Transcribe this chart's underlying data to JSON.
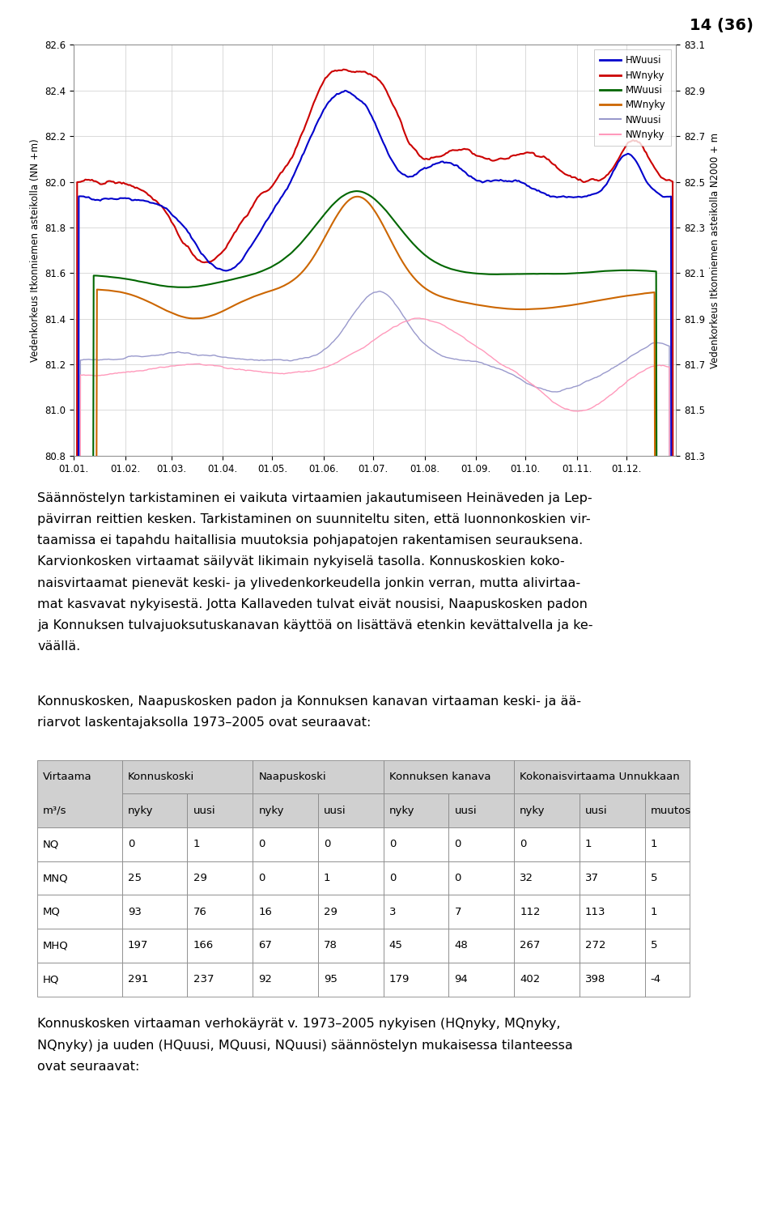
{
  "page_number": "14 (36)",
  "chart": {
    "ylim_left": [
      80.8,
      82.6
    ],
    "ylim_right": [
      81.3,
      83.1
    ],
    "ylabel_left": "Vedenkorkeus Itkonniemen asteikolla (NN +m)",
    "ylabel_right": "Vedenkorkeus Itkonniemen asteikolla N2000 + m",
    "yticks_left": [
      80.8,
      81.0,
      81.2,
      81.4,
      81.6,
      81.8,
      82.0,
      82.2,
      82.4,
      82.6
    ],
    "yticks_right": [
      81.3,
      81.5,
      81.7,
      81.9,
      82.1,
      82.3,
      82.5,
      82.7,
      82.9,
      83.1
    ],
    "xtick_labels": [
      "01.01.",
      "01.02.",
      "01.03.",
      "01.04.",
      "01.05.",
      "01.06.",
      "01.07.",
      "01.08.",
      "01.09.",
      "01.10.",
      "01.11.",
      "01.12."
    ],
    "legend": [
      "HWuusi",
      "HWnyky",
      "MWuusi",
      "MWnyky",
      "NWuusi",
      "NWnyky"
    ],
    "line_colors": [
      "#0000cc",
      "#cc0000",
      "#006600",
      "#cc6600",
      "#9999cc",
      "#ff99bb"
    ],
    "line_widths": [
      1.5,
      1.5,
      1.5,
      1.5,
      1.0,
      1.0
    ]
  },
  "para1_lines": [
    "Säännöstelyn tarkistaminen ei vaikuta virtaamien jakautumiseen Heinäveden ja Lep-",
    "pävirran reittien kesken. Tarkistaminen on suunniteltu siten, että luonnonkoskien vir-",
    "taamissa ei tapahdu haitallisia muutoksia pohjapatojen rakentamisen seurauksena.",
    "Karvionkosken virtaamat säilyvät likimain nykyiselä tasolla. Konnuskoskien koko-",
    "naisvirtaamat pienevät keski- ja ylivedenkorkeudella jonkin verran, mutta alivirtaa-",
    "mat kasvavat nykyisestä. Jotta Kallaveden tulvat eivät nousisi, Naapuskosken padon",
    "ja Konnuksen tulvajuoksutuskanavan käyttöä on lisättävä etenkin kevättalvella ja ke-",
    "väällä."
  ],
  "para2_lines": [
    "Konnuskosken, Naapuskosken padon ja Konnuksen kanavan virtaaman keski- ja ää-",
    "riarvot laskentajaksolla 1973–2005 ovat seuraavat:"
  ],
  "table": {
    "rows": [
      [
        "NQ",
        "0",
        "1",
        "0",
        "0",
        "0",
        "0",
        "0",
        "1",
        "1"
      ],
      [
        "MNQ",
        "25",
        "29",
        "0",
        "1",
        "0",
        "0",
        "32",
        "37",
        "5"
      ],
      [
        "MQ",
        "93",
        "76",
        "16",
        "29",
        "3",
        "7",
        "112",
        "113",
        "1"
      ],
      [
        "MHQ",
        "197",
        "166",
        "67",
        "78",
        "45",
        "48",
        "267",
        "272",
        "5"
      ],
      [
        "HQ",
        "291",
        "237",
        "92",
        "95",
        "179",
        "94",
        "402",
        "398",
        "-4"
      ]
    ]
  },
  "para3_lines": [
    "Konnuskosken virtaaman verhokäyrät v. 1973–2005 nykyisen (HQnyky, MQnyky,",
    "NQnyky) ja uuden (HQuusi, MQuusi, NQuusi) säännöstelyn mukaisessa tilanteessa",
    "ovat seuraavat:"
  ],
  "header_bg": "#d0d0d0",
  "col_widths_norm": [
    0.118,
    0.091,
    0.091,
    0.091,
    0.091,
    0.091,
    0.091,
    0.091,
    0.091,
    0.063
  ],
  "text_fontsize": 11.5,
  "table_fontsize": 9.5,
  "page_num_fontsize": 14
}
